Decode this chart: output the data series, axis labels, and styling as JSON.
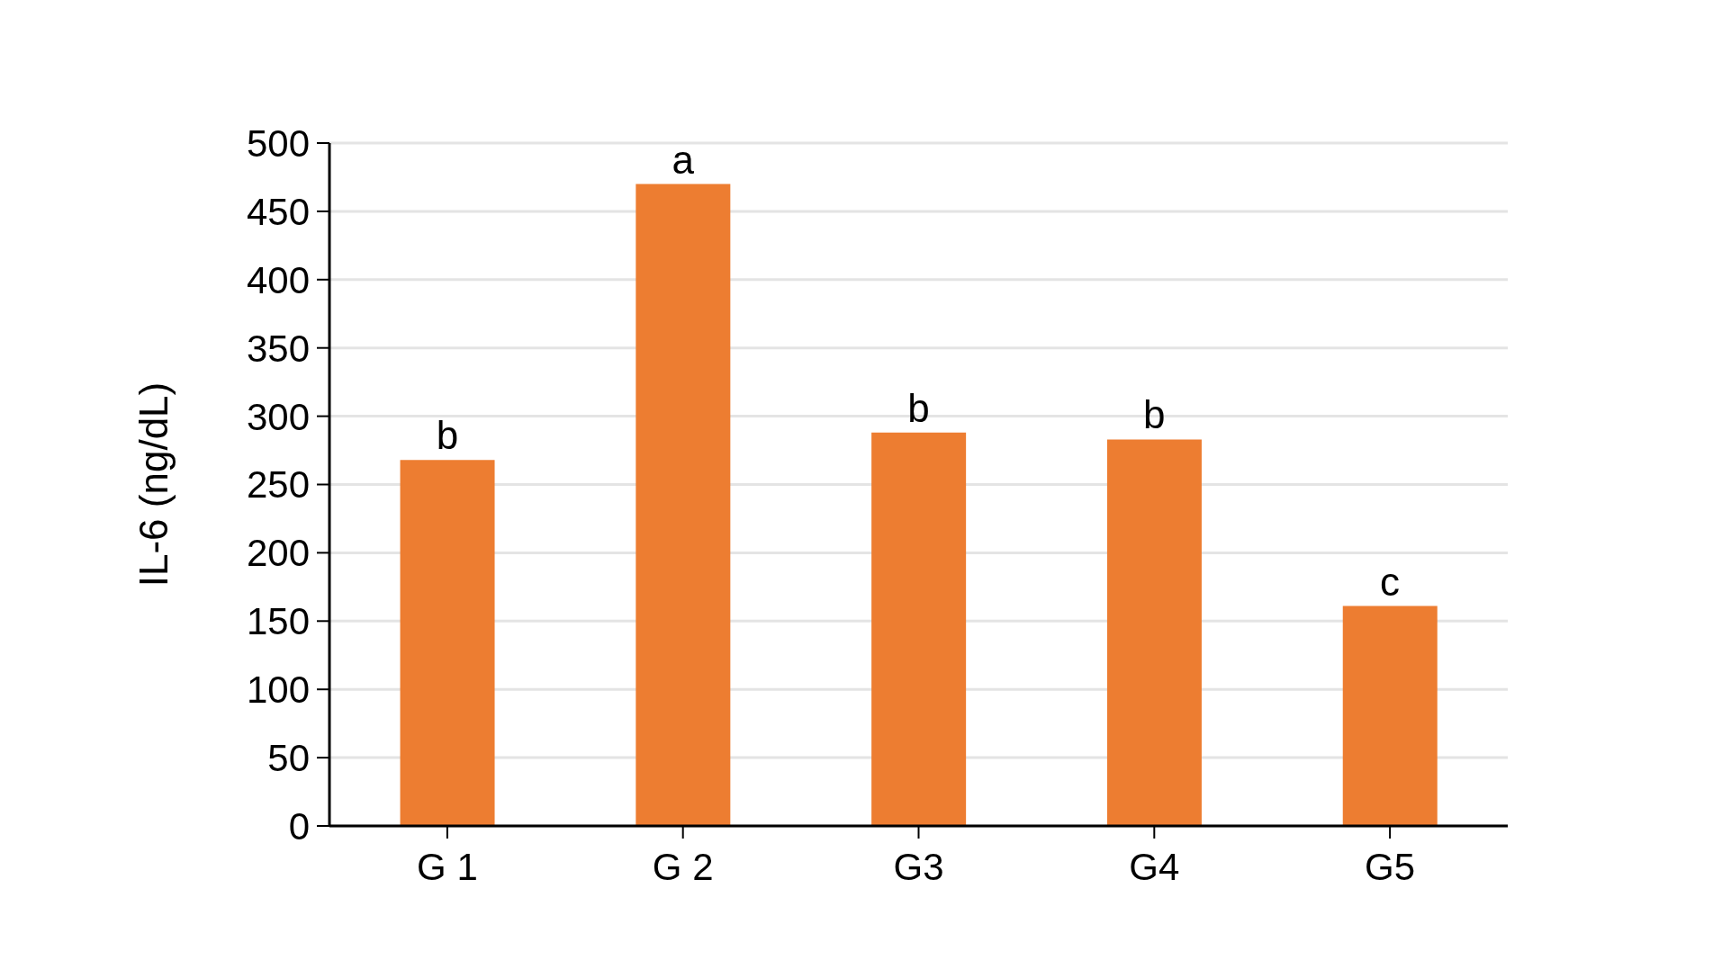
{
  "chart_data": {
    "type": "bar",
    "ylabel": "IL-6 (ng/dL)",
    "categories": [
      "G 1",
      "G 2",
      "G3",
      "G4",
      "G5"
    ],
    "values": [
      268,
      470,
      288,
      283,
      161
    ],
    "color": "#ed7d31",
    "ylim": [
      0,
      500
    ],
    "yticks": [
      0,
      50,
      100,
      150,
      200,
      250,
      300,
      350,
      400,
      450,
      500
    ],
    "grid": "y",
    "annotations": [
      {
        "text": "b",
        "x": "G 1",
        "y": 268
      },
      {
        "text": "a",
        "x": "G 2",
        "y": 470
      },
      {
        "text": "b",
        "x": "G3",
        "y": 288
      },
      {
        "text": "b",
        "x": "G4",
        "y": 283
      },
      {
        "text": "c",
        "x": "G5",
        "y": 161
      }
    ]
  }
}
